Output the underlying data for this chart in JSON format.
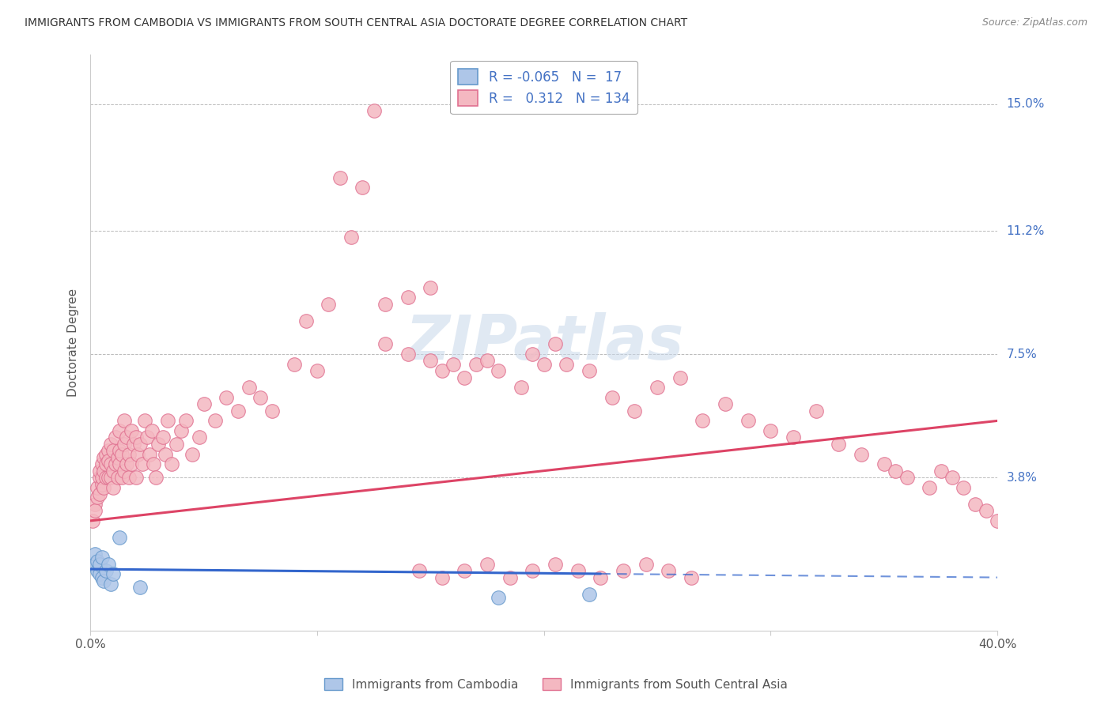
{
  "title": "IMMIGRANTS FROM CAMBODIA VS IMMIGRANTS FROM SOUTH CENTRAL ASIA DOCTORATE DEGREE CORRELATION CHART",
  "source": "Source: ZipAtlas.com",
  "ylabel": "Doctorate Degree",
  "ytick_labels": [
    "3.8%",
    "7.5%",
    "11.2%",
    "15.0%"
  ],
  "ytick_values": [
    0.038,
    0.075,
    0.112,
    0.15
  ],
  "xlim": [
    0.0,
    0.4
  ],
  "ylim": [
    -0.008,
    0.165
  ],
  "cambodia_color": "#aec6e8",
  "cambodia_edge_color": "#6699cc",
  "sca_color": "#f4b8c1",
  "sca_edge_color": "#e07090",
  "cambodia_line_color": "#3366cc",
  "sca_line_color": "#dd4466",
  "legend_cambodia_R": "-0.065",
  "legend_cambodia_N": "17",
  "legend_sca_R": "0.312",
  "legend_sca_N": "134",
  "legend_label_cambodia": "Immigrants from Cambodia",
  "legend_label_sca": "Immigrants from South Central Asia",
  "background_color": "#ffffff",
  "grid_color": "#bbbbbb",
  "title_color": "#333333",
  "right_label_color": "#4472c4",
  "watermark_color": "#c8d8ea",
  "watermark": "ZIPatlas",
  "camb_x": [
    0.001,
    0.002,
    0.003,
    0.003,
    0.004,
    0.004,
    0.005,
    0.005,
    0.006,
    0.007,
    0.008,
    0.009,
    0.01,
    0.013,
    0.022,
    0.18,
    0.22
  ],
  "camb_y": [
    0.012,
    0.015,
    0.01,
    0.013,
    0.009,
    0.012,
    0.008,
    0.014,
    0.007,
    0.01,
    0.012,
    0.006,
    0.009,
    0.02,
    0.005,
    0.002,
    0.003
  ],
  "sca_x": [
    0.001,
    0.002,
    0.002,
    0.003,
    0.003,
    0.004,
    0.004,
    0.004,
    0.005,
    0.005,
    0.005,
    0.006,
    0.006,
    0.006,
    0.007,
    0.007,
    0.007,
    0.008,
    0.008,
    0.008,
    0.009,
    0.009,
    0.009,
    0.01,
    0.01,
    0.01,
    0.011,
    0.011,
    0.012,
    0.012,
    0.013,
    0.013,
    0.013,
    0.014,
    0.014,
    0.015,
    0.015,
    0.015,
    0.016,
    0.016,
    0.017,
    0.017,
    0.018,
    0.018,
    0.019,
    0.02,
    0.02,
    0.021,
    0.022,
    0.023,
    0.024,
    0.025,
    0.026,
    0.027,
    0.028,
    0.029,
    0.03,
    0.032,
    0.033,
    0.034,
    0.036,
    0.038,
    0.04,
    0.042,
    0.045,
    0.048,
    0.05,
    0.055,
    0.06,
    0.065,
    0.07,
    0.075,
    0.08,
    0.09,
    0.1,
    0.11,
    0.12,
    0.13,
    0.14,
    0.15,
    0.155,
    0.16,
    0.165,
    0.17,
    0.175,
    0.18,
    0.19,
    0.195,
    0.2,
    0.205,
    0.21,
    0.22,
    0.23,
    0.24,
    0.25,
    0.26,
    0.27,
    0.28,
    0.29,
    0.3,
    0.31,
    0.32,
    0.33,
    0.34,
    0.35,
    0.355,
    0.36,
    0.37,
    0.375,
    0.38,
    0.385,
    0.39,
    0.395,
    0.4,
    0.13,
    0.14,
    0.15,
    0.115,
    0.125,
    0.105,
    0.095,
    0.145,
    0.155,
    0.165,
    0.175,
    0.185,
    0.195,
    0.205,
    0.215,
    0.225,
    0.235,
    0.245,
    0.255,
    0.265
  ],
  "sca_y": [
    0.025,
    0.03,
    0.028,
    0.032,
    0.035,
    0.038,
    0.033,
    0.04,
    0.036,
    0.042,
    0.038,
    0.044,
    0.04,
    0.035,
    0.038,
    0.045,
    0.042,
    0.046,
    0.038,
    0.043,
    0.042,
    0.048,
    0.038,
    0.04,
    0.046,
    0.035,
    0.042,
    0.05,
    0.044,
    0.038,
    0.046,
    0.042,
    0.052,
    0.038,
    0.045,
    0.048,
    0.04,
    0.055,
    0.042,
    0.05,
    0.045,
    0.038,
    0.052,
    0.042,
    0.048,
    0.05,
    0.038,
    0.045,
    0.048,
    0.042,
    0.055,
    0.05,
    0.045,
    0.052,
    0.042,
    0.038,
    0.048,
    0.05,
    0.045,
    0.055,
    0.042,
    0.048,
    0.052,
    0.055,
    0.045,
    0.05,
    0.06,
    0.055,
    0.062,
    0.058,
    0.065,
    0.062,
    0.058,
    0.072,
    0.07,
    0.128,
    0.125,
    0.078,
    0.075,
    0.073,
    0.07,
    0.072,
    0.068,
    0.072,
    0.073,
    0.07,
    0.065,
    0.075,
    0.072,
    0.078,
    0.072,
    0.07,
    0.062,
    0.058,
    0.065,
    0.068,
    0.055,
    0.06,
    0.055,
    0.052,
    0.05,
    0.058,
    0.048,
    0.045,
    0.042,
    0.04,
    0.038,
    0.035,
    0.04,
    0.038,
    0.035,
    0.03,
    0.028,
    0.025,
    0.09,
    0.092,
    0.095,
    0.11,
    0.148,
    0.09,
    0.085,
    0.01,
    0.008,
    0.01,
    0.012,
    0.008,
    0.01,
    0.012,
    0.01,
    0.008,
    0.01,
    0.012,
    0.01,
    0.008
  ],
  "sca_trend_x0": 0.0,
  "sca_trend_y0": 0.025,
  "sca_trend_x1": 0.4,
  "sca_trend_y1": 0.055,
  "camb_trend_x0": 0.0,
  "camb_trend_y0": 0.0105,
  "camb_trend_x1": 0.4,
  "camb_trend_y1": 0.008
}
